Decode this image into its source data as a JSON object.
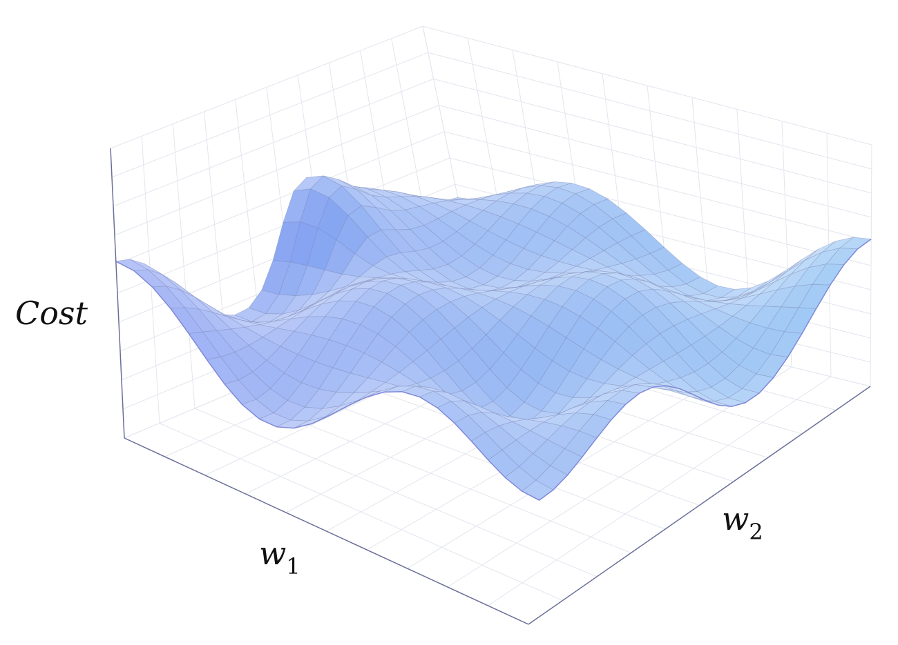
{
  "axes": {
    "z_label": "Cost",
    "x_label": {
      "base": "w",
      "subscript": "1"
    },
    "y_label": {
      "base": "w",
      "subscript": "2"
    }
  }
}
